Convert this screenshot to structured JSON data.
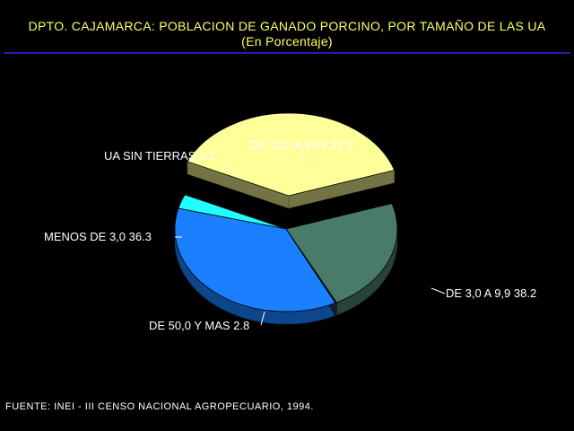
{
  "title_line1": "DPTO. CAJAMARCA: POBLACION DE GANADO PORCINO, POR TAMAÑO DE LAS UA",
  "title_line2": "(En Porcentaje)",
  "source": "FUENTE: INEI - III CENSO NACIONAL AGROPECUARIO, 1994.",
  "chart_data": {
    "type": "pie",
    "title": "DPTO. CAJAMARCA: POBLACION DE GANADO PORCINO, POR TAMAÑO DE LAS UA",
    "subtitle": "(En Porcentaje)",
    "slices": [
      {
        "label": "DE 10,0 A 49,9",
        "value": 22.5,
        "color": "#4a7a6a",
        "exploded": false
      },
      {
        "label": "DE 3,0 A 9,9",
        "value": 38.2,
        "color": "#ffff99",
        "exploded": true
      },
      {
        "label": "DE 50,0 Y MAS",
        "value": 2.8,
        "color": "#22ffff",
        "exploded": false
      },
      {
        "label": "MENOS DE 3,0",
        "value": 36.3,
        "color": "#1a80ff",
        "exploded": false
      },
      {
        "label": "UA SIN TIERRAS",
        "value": 0.2,
        "color": "#2a4070",
        "exploded": false
      }
    ]
  }
}
